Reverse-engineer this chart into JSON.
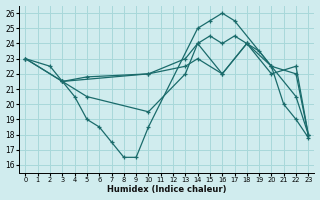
{
  "bg_color": "#d0ecee",
  "grid_color": "#a8d8da",
  "line_color": "#1a6b6b",
  "xlabel": "Humidex (Indice chaleur)",
  "xlim": [
    -0.5,
    23.5
  ],
  "ylim": [
    15.5,
    26.5
  ],
  "yticks": [
    16,
    17,
    18,
    19,
    20,
    21,
    22,
    23,
    24,
    25,
    26
  ],
  "xticks": [
    0,
    1,
    2,
    3,
    4,
    5,
    6,
    7,
    8,
    9,
    10,
    11,
    12,
    13,
    14,
    15,
    16,
    17,
    18,
    19,
    20,
    21,
    22,
    23
  ],
  "lines": [
    {
      "x": [
        0,
        2,
        3,
        4,
        5,
        6,
        7,
        8,
        9,
        10,
        14,
        15,
        16,
        17,
        20,
        21,
        22,
        23
      ],
      "y": [
        23,
        22.5,
        21.5,
        20.5,
        19,
        18.5,
        17.5,
        16.5,
        16.5,
        18.5,
        25,
        25.5,
        26,
        25.5,
        22.5,
        20,
        19,
        17.8
      ]
    },
    {
      "x": [
        0,
        3,
        10,
        13,
        14,
        16,
        18,
        20,
        22,
        23
      ],
      "y": [
        23,
        21.5,
        22,
        23,
        24,
        22,
        24,
        22,
        22.5,
        18
      ]
    },
    {
      "comment": "Line 3: from 3,21.5 rises to 17,24.5 then to 20,22.5 drops to 23,18",
      "x": [
        3,
        5,
        10,
        13,
        14,
        15,
        16,
        17,
        18,
        20,
        22,
        23
      ],
      "y": [
        21.5,
        20.5,
        19.5,
        22,
        24,
        24.5,
        24,
        24.5,
        24,
        22.5,
        22,
        18
      ]
    },
    {
      "x": [
        0,
        3,
        5,
        10,
        13,
        14,
        16,
        18,
        19,
        20,
        22,
        23
      ],
      "y": [
        23,
        21.5,
        21.8,
        22,
        22.5,
        23,
        22,
        24,
        23.5,
        22.5,
        20.5,
        18
      ]
    }
  ]
}
